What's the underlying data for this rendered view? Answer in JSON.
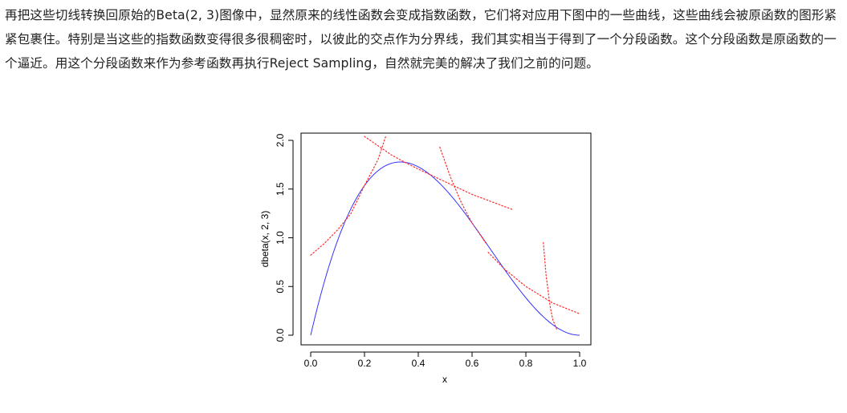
{
  "text": {
    "paragraph": "再把这些切线转换回原始的Beta(2, 3)图像中，显然原来的线性函数会变成指数函数，它们将对应用下图中的一些曲线，这些曲线会被原函数的图形紧紧包裹住。特别是当这些的指数函数变得很多很稠密时，以彼此的交点作为分界线，我们其实相当于得到了一个分段函数。这个分段函数是原函数的一个逼近。用这个分段函数来作为参考函数再执行Reject Sampling，自然就完美的解决了我们之前的问题。"
  },
  "chart_data": {
    "type": "line",
    "xlabel": "x",
    "ylabel": "dbeta(x, 2, 3)",
    "xlim": [
      0,
      1
    ],
    "ylim": [
      0,
      2
    ],
    "x_ticks": [
      "0.0",
      "0.2",
      "0.4",
      "0.6",
      "0.8",
      "1.0"
    ],
    "y_ticks": [
      "0.0",
      "0.5",
      "1.0",
      "1.5",
      "2.0"
    ],
    "grid": false,
    "legend": "none",
    "series": [
      {
        "function": "dbeta(x, 2, 3)",
        "style": "solid",
        "color": "#3333ff",
        "x": [
          0,
          0.05,
          0.1,
          0.15,
          0.2,
          0.25,
          0.3,
          0.333,
          0.35,
          0.4,
          0.45,
          0.5,
          0.55,
          0.6,
          0.65,
          0.7,
          0.75,
          0.8,
          0.85,
          0.9,
          0.95,
          1.0
        ],
        "y": [
          0,
          0.542,
          0.972,
          1.301,
          1.536,
          1.688,
          1.764,
          1.778,
          1.775,
          1.728,
          1.634,
          1.5,
          1.337,
          1.152,
          0.956,
          0.756,
          0.5625,
          0.384,
          0.2295,
          0.108,
          0.0285,
          0
        ]
      },
      {
        "tangent_at": 0.2,
        "style": "dotted",
        "color": "#ff2a2a",
        "x": [
          0,
          0.05,
          0.1,
          0.15,
          0.2,
          0.25,
          0.28
        ],
        "y": [
          0.822,
          0.94,
          1.081,
          1.25,
          1.536,
          1.8,
          2.05
        ]
      },
      {
        "tangent_at": 0.35,
        "style": "dotted",
        "color": "#ff2a2a",
        "x": [
          0.2,
          0.3,
          0.35,
          0.4,
          0.5,
          0.6,
          0.75
        ],
        "y": [
          2.04,
          1.85,
          1.775,
          1.705,
          1.575,
          1.445,
          1.29
        ]
      },
      {
        "tangent_at": 0.6,
        "style": "dotted",
        "color": "#ff2a2a",
        "x": [
          0.48,
          0.52,
          0.56,
          0.6,
          0.65
        ],
        "y": [
          1.93,
          1.62,
          1.36,
          1.152,
          0.95
        ]
      },
      {
        "tangent_at": 0.72,
        "style": "dotted",
        "color": "#ff2a2a",
        "x": [
          0.66,
          0.72,
          0.8,
          0.9,
          1.0
        ],
        "y": [
          0.85,
          0.68,
          0.5,
          0.33,
          0.22
        ]
      },
      {
        "tangent_at": 0.9,
        "style": "dotted",
        "color": "#ff2a2a",
        "x": [
          0.865,
          0.875,
          0.89,
          0.9,
          0.915
        ],
        "y": [
          0.95,
          0.62,
          0.3,
          0.16,
          0.06
        ]
      }
    ]
  }
}
